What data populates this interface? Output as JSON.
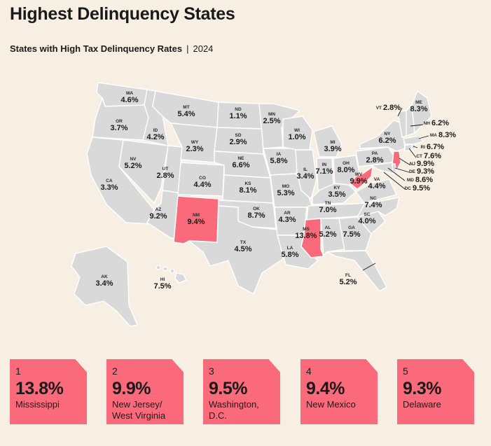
{
  "header": {
    "title": "Highest Delinquency States",
    "subtitle_bold": "States with High Tax Delinquency Rates",
    "subtitle_sep": "|",
    "subtitle_year": "2024"
  },
  "colors": {
    "background": "#f7efe3",
    "state_default": "#d9d9d9",
    "highlight": "#fb6a7b"
  },
  "states": {
    "WA": {
      "abbr": "WA",
      "value": "4.6%"
    },
    "OR": {
      "abbr": "OR",
      "value": "3.7%"
    },
    "CA": {
      "abbr": "CA",
      "value": "3.3%"
    },
    "ID": {
      "abbr": "ID",
      "value": "4.2%"
    },
    "NV": {
      "abbr": "NV",
      "value": "5.2%"
    },
    "UT": {
      "abbr": "UT",
      "value": "2.8%"
    },
    "AZ": {
      "abbr": "AZ",
      "value": "9.2%"
    },
    "MT": {
      "abbr": "MT",
      "value": "5.4%"
    },
    "WY": {
      "abbr": "WY",
      "value": "2.3%"
    },
    "CO": {
      "abbr": "CO",
      "value": "4.4%"
    },
    "NM": {
      "abbr": "NM",
      "value": "9.4%"
    },
    "ND": {
      "abbr": "ND",
      "value": "1.1%"
    },
    "SD": {
      "abbr": "SD",
      "value": "2.9%"
    },
    "NE": {
      "abbr": "NE",
      "value": "6.6%"
    },
    "KS": {
      "abbr": "KS",
      "value": "8.1%"
    },
    "OK": {
      "abbr": "OK",
      "value": "8.7%"
    },
    "TX": {
      "abbr": "TX",
      "value": "4.5%"
    },
    "MN": {
      "abbr": "MN",
      "value": "2.5%"
    },
    "IA": {
      "abbr": "IA",
      "value": "5.8%"
    },
    "MO": {
      "abbr": "MO",
      "value": "5.3%"
    },
    "AR": {
      "abbr": "AR",
      "value": "4.3%"
    },
    "LA": {
      "abbr": "LA",
      "value": "5.8%"
    },
    "WI": {
      "abbr": "WI",
      "value": "1.0%"
    },
    "IL": {
      "abbr": "IL",
      "value": "3.4%"
    },
    "MI": {
      "abbr": "MI",
      "value": "3.9%"
    },
    "IN": {
      "abbr": "IN",
      "value": "7.1%"
    },
    "OH": {
      "abbr": "OH",
      "value": "8.0%"
    },
    "KY": {
      "abbr": "KY",
      "value": "3.5%"
    },
    "TN": {
      "abbr": "TN",
      "value": "7.0%"
    },
    "MS": {
      "abbr": "MS",
      "value": "13.8%"
    },
    "AL": {
      "abbr": "AL",
      "value": "5.2%"
    },
    "GA": {
      "abbr": "GA",
      "value": "7.5%"
    },
    "FL": {
      "abbr": "FL",
      "value": "5.2%"
    },
    "SC": {
      "abbr": "SC",
      "value": "4.0%"
    },
    "NC": {
      "abbr": "NC",
      "value": "7.4%"
    },
    "VA": {
      "abbr": "VA",
      "value": "4.4%"
    },
    "WV": {
      "abbr": "WV",
      "value": "9.9%"
    },
    "PA": {
      "abbr": "PA",
      "value": "2.8%"
    },
    "NY": {
      "abbr": "NY",
      "value": "6.2%"
    },
    "VT": {
      "abbr": "VT",
      "value": "2.8%"
    },
    "NH": {
      "abbr": "NH",
      "value": "6.2%"
    },
    "ME": {
      "abbr": "ME",
      "value": "8.3%"
    },
    "MA": {
      "abbr": "MA",
      "value": "8.3%"
    },
    "RI": {
      "abbr": "RI",
      "value": "6.7%"
    },
    "CT": {
      "abbr": "CT",
      "value": "7.6%"
    },
    "NJ": {
      "abbr": "NJ",
      "value": "9.9%"
    },
    "DE": {
      "abbr": "DE",
      "value": "9.3%"
    },
    "MD": {
      "abbr": "MD",
      "value": "8.6%"
    },
    "DC": {
      "abbr": "DC",
      "value": "9.5%"
    },
    "AK": {
      "abbr": "AK",
      "value": "3.4%"
    },
    "HI": {
      "abbr": "HI",
      "value": "7.5%"
    }
  },
  "highlighted": [
    "NM",
    "MS",
    "WV",
    "NJ"
  ],
  "top5": [
    {
      "rank": "1",
      "value": "13.8%",
      "name": "Mississippi"
    },
    {
      "rank": "2",
      "value": "9.9%",
      "name": "New Jersey/ West Virginia"
    },
    {
      "rank": "3",
      "value": "9.5%",
      "name": "Washington, D.C."
    },
    {
      "rank": "4",
      "value": "9.4%",
      "name": "New Mexico"
    },
    {
      "rank": "5",
      "value": "9.3%",
      "name": "Delaware"
    }
  ]
}
